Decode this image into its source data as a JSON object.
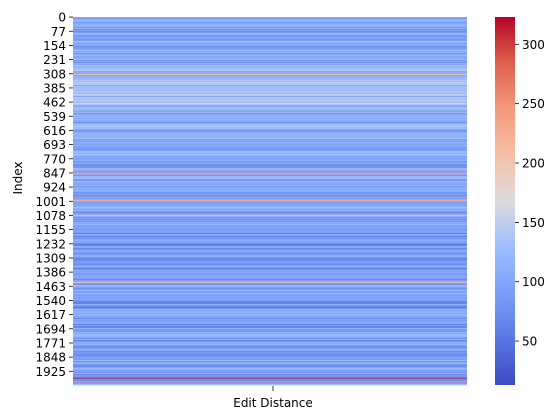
{
  "chart_data": {
    "type": "heatmap",
    "title": "",
    "xlabel": "Edit Distance",
    "ylabel": "Index",
    "columns": [
      "Edit Distance"
    ],
    "row_count": 2000,
    "y_ticks": [
      "0",
      "77",
      "154",
      "231",
      "308",
      "385",
      "462",
      "539",
      "616",
      "693",
      "770",
      "847",
      "924",
      "1001",
      "1078",
      "1155",
      "1232",
      "1309",
      "1386",
      "1463",
      "1540",
      "1617",
      "1694",
      "1771",
      "1848",
      "1925"
    ],
    "y_tick_values": [
      0,
      77,
      154,
      231,
      308,
      385,
      462,
      539,
      616,
      693,
      770,
      847,
      924,
      1001,
      1078,
      1155,
      1232,
      1309,
      1386,
      1463,
      1540,
      1617,
      1694,
      1771,
      1848,
      1925
    ],
    "colorbar": {
      "colormap": "coolwarm",
      "range": [
        13,
        323
      ],
      "ticks": [
        50,
        100,
        150,
        200,
        250,
        300
      ],
      "tick_labels": [
        "50",
        "100",
        "150",
        "200",
        "250",
        "300"
      ]
    },
    "value_profile": {
      "description_free": true,
      "segments": [
        {
          "start": 0,
          "end": 120,
          "typical": 95
        },
        {
          "start": 120,
          "end": 260,
          "typical": 100
        },
        {
          "start": 260,
          "end": 480,
          "typical": 130
        },
        {
          "start": 480,
          "end": 620,
          "typical": 110
        },
        {
          "start": 620,
          "end": 880,
          "typical": 105
        },
        {
          "start": 880,
          "end": 1100,
          "typical": 100
        },
        {
          "start": 1100,
          "end": 1300,
          "typical": 85
        },
        {
          "start": 1300,
          "end": 1500,
          "typical": 95
        },
        {
          "start": 1500,
          "end": 1700,
          "typical": 90
        },
        {
          "start": 1700,
          "end": 2000,
          "typical": 100
        }
      ],
      "notable_rows": [
        {
          "index": 312,
          "value": 200
        },
        {
          "index": 847,
          "value": 250
        },
        {
          "index": 870,
          "value": 240
        },
        {
          "index": 996,
          "value": 230
        },
        {
          "index": 1078,
          "value": 215
        },
        {
          "index": 1440,
          "value": 200
        },
        {
          "index": 1960,
          "value": 323
        },
        {
          "index": 1980,
          "value": 230
        }
      ]
    }
  }
}
